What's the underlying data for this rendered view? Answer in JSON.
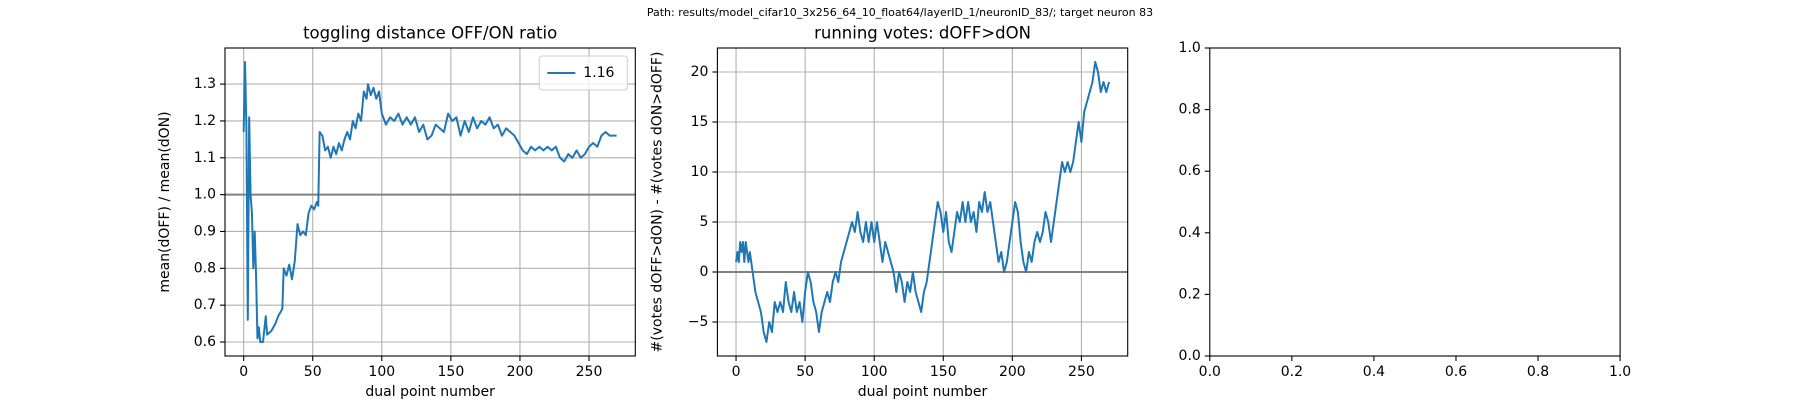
{
  "suptitle": "Path: results/model_cifar10_3x256_64_10_float64/layerID_1/neuronID_83/; target neuron 83",
  "chart_data": [
    {
      "type": "line",
      "title": "toggling distance OFF/ON ratio",
      "xlabel": "dual point number",
      "ylabel": "mean(dOFF) / mean(dON)",
      "xlim": [
        -13.5,
        283.5
      ],
      "ylim": [
        0.562,
        1.398
      ],
      "xticks": [
        0,
        50,
        100,
        150,
        200,
        250
      ],
      "yticks": [
        0.6,
        0.7,
        0.8,
        0.9,
        {
          "value": 1.0,
          "label": "1.0"
        },
        1.1,
        1.2,
        1.3
      ],
      "grid": true,
      "hline": 1,
      "legend": "upper right",
      "series": [
        {
          "name": "1.16",
          "color": "#1f77b4",
          "x": [
            0,
            1,
            2,
            3,
            4,
            5,
            6,
            7,
            8,
            9,
            10,
            11,
            12,
            14,
            16,
            17,
            20,
            23,
            25,
            28,
            29,
            31,
            33,
            35,
            37,
            39,
            41,
            43,
            45,
            47,
            49,
            51,
            53,
            54,
            55,
            57,
            59,
            61,
            63,
            65,
            67,
            69,
            71,
            73,
            75,
            77,
            79,
            81,
            83,
            85,
            87,
            89,
            90,
            92,
            94,
            96,
            98,
            100,
            103,
            106,
            109,
            112,
            115,
            118,
            121,
            124,
            127,
            130,
            133,
            136,
            139,
            142,
            145,
            148,
            151,
            154,
            157,
            160,
            163,
            166,
            169,
            172,
            175,
            178,
            181,
            184,
            187,
            190,
            193,
            196,
            199,
            202,
            205,
            208,
            211,
            214,
            217,
            220,
            223,
            226,
            229,
            232,
            235,
            238,
            241,
            244,
            247,
            250,
            253,
            256,
            259,
            262,
            265,
            268,
            270
          ],
          "values": [
            1.17,
            1.36,
            1.18,
            0.66,
            1.21,
            1.0,
            0.95,
            0.8,
            0.9,
            0.78,
            0.61,
            0.64,
            0.6,
            0.6,
            0.67,
            0.62,
            0.63,
            0.65,
            0.67,
            0.69,
            0.8,
            0.78,
            0.81,
            0.77,
            0.82,
            0.92,
            0.89,
            0.9,
            0.89,
            0.95,
            0.97,
            0.96,
            0.98,
            0.97,
            1.17,
            1.16,
            1.12,
            1.13,
            1.1,
            1.13,
            1.11,
            1.14,
            1.12,
            1.15,
            1.17,
            1.15,
            1.2,
            1.18,
            1.22,
            1.2,
            1.28,
            1.26,
            1.3,
            1.27,
            1.29,
            1.26,
            1.28,
            1.22,
            1.19,
            1.21,
            1.2,
            1.22,
            1.19,
            1.21,
            1.19,
            1.21,
            1.17,
            1.19,
            1.15,
            1.16,
            1.19,
            1.18,
            1.17,
            1.22,
            1.2,
            1.21,
            1.16,
            1.2,
            1.17,
            1.21,
            1.18,
            1.2,
            1.19,
            1.21,
            1.18,
            1.19,
            1.16,
            1.18,
            1.17,
            1.16,
            1.14,
            1.12,
            1.11,
            1.13,
            1.12,
            1.13,
            1.12,
            1.13,
            1.12,
            1.13,
            1.1,
            1.09,
            1.11,
            1.1,
            1.12,
            1.1,
            1.11,
            1.13,
            1.14,
            1.13,
            1.16,
            1.17,
            1.16,
            1.16,
            1.16
          ]
        }
      ]
    },
    {
      "type": "line",
      "title": "running votes: dOFF>dON",
      "xlabel": "dual point number",
      "ylabel": "#(votes dOFF>dON) - #(votes dON>dOFF)",
      "xlim": [
        -13.5,
        283.5
      ],
      "ylim": [
        -8.4,
        22.4
      ],
      "xticks": [
        0,
        50,
        100,
        150,
        200,
        250
      ],
      "yticks": [
        {
          "value": -5,
          "label": "−5"
        },
        0,
        5,
        10,
        15,
        20
      ],
      "grid": true,
      "hline": 0,
      "series": [
        {
          "color": "#1f77b4",
          "x": [
            0,
            1,
            2,
            3,
            4,
            5,
            6,
            7,
            8,
            9,
            10,
            12,
            14,
            16,
            18,
            20,
            22,
            24,
            26,
            28,
            30,
            32,
            34,
            36,
            38,
            40,
            42,
            44,
            46,
            48,
            50,
            52,
            54,
            56,
            58,
            60,
            62,
            64,
            66,
            68,
            70,
            72,
            74,
            76,
            78,
            80,
            82,
            84,
            86,
            88,
            90,
            92,
            94,
            96,
            98,
            100,
            102,
            104,
            106,
            108,
            110,
            112,
            114,
            116,
            118,
            120,
            122,
            124,
            126,
            128,
            130,
            132,
            134,
            136,
            138,
            140,
            142,
            144,
            146,
            148,
            150,
            152,
            154,
            156,
            158,
            160,
            162,
            164,
            166,
            168,
            170,
            172,
            174,
            176,
            178,
            180,
            182,
            184,
            186,
            188,
            190,
            192,
            194,
            196,
            198,
            200,
            202,
            204,
            206,
            208,
            210,
            212,
            214,
            216,
            218,
            220,
            222,
            224,
            226,
            228,
            230,
            232,
            234,
            236,
            238,
            240,
            242,
            244,
            246,
            248,
            250,
            252,
            254,
            256,
            258,
            260,
            262,
            264,
            266,
            268,
            270
          ],
          "values": [
            1,
            2,
            1,
            3,
            2,
            3,
            1,
            3,
            2,
            1,
            2,
            0,
            -2,
            -3,
            -4,
            -6,
            -7,
            -5,
            -6,
            -3,
            -4,
            -3,
            -4,
            -1,
            -3,
            -4,
            -2,
            -4,
            -3,
            -5,
            -2,
            0,
            -1,
            -3,
            -4,
            -6,
            -4,
            -3,
            -2,
            -3,
            -1,
            0,
            -1,
            1,
            2,
            3,
            4,
            5,
            4,
            6,
            4,
            3,
            5,
            3,
            5,
            3,
            5,
            3,
            1,
            3,
            2,
            1,
            0,
            -2,
            0,
            -1,
            -3,
            -1,
            -2,
            0,
            -2,
            -3,
            -4,
            -2,
            -1,
            1,
            3,
            5,
            7,
            6,
            4,
            6,
            3,
            2,
            4,
            6,
            5,
            7,
            5,
            7,
            5,
            6,
            4,
            7,
            6,
            8,
            6,
            7,
            5,
            3,
            1,
            2,
            0,
            1,
            3,
            5,
            7,
            6,
            3,
            1,
            0,
            2,
            1,
            3,
            4,
            3,
            4,
            6,
            5,
            3,
            5,
            7,
            9,
            11,
            10,
            11,
            10,
            11,
            13,
            15,
            13,
            16,
            17,
            18,
            19,
            21,
            20,
            18,
            19,
            18,
            19
          ]
        }
      ]
    },
    {
      "type": "line",
      "xlim": [
        0,
        1
      ],
      "ylim": [
        0,
        1
      ],
      "xticks": [
        {
          "value": 0,
          "label": "0.0"
        },
        0.2,
        0.4,
        0.6,
        0.8,
        {
          "value": 1,
          "label": "1.0"
        }
      ],
      "yticks": [
        {
          "value": 0,
          "label": "0.0"
        },
        0.2,
        0.4,
        0.6,
        0.8,
        {
          "value": 1,
          "label": "1.0"
        }
      ],
      "grid": false
    }
  ]
}
